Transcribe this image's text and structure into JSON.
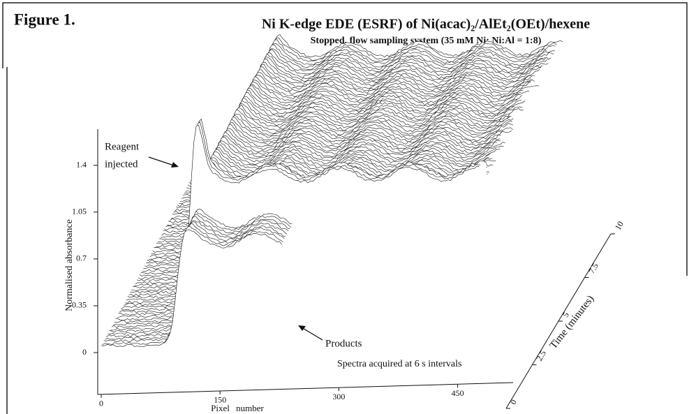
{
  "figure_label": "Figure 1.",
  "chart_data": {
    "type": "waterfall",
    "title": "Ni K-edge EDE (ESRF) of Ni(acac)₂/AlEt₂(OEt)/hexene",
    "subtitle": "Stopped, flow sampling system (35 mM Ni; Ni:Al = 1:8)",
    "xlabel": "Pixel number",
    "ylabel": "Normalised absorbance",
    "zlabel": "Time (minutes)",
    "xlim": [
      0,
      520
    ],
    "xticks": [
      0,
      150,
      300,
      450
    ],
    "ylim": [
      0,
      1.67
    ],
    "yticks": [
      0,
      0.35,
      0.7,
      1.05,
      1.4
    ],
    "zlim": [
      0,
      10
    ],
    "zticks": [
      0,
      2.5,
      5,
      7.5,
      10
    ],
    "annotations": [
      "Reagent",
      "injected",
      "Products",
      "Spectra acquired at 6 s intervals"
    ]
  }
}
